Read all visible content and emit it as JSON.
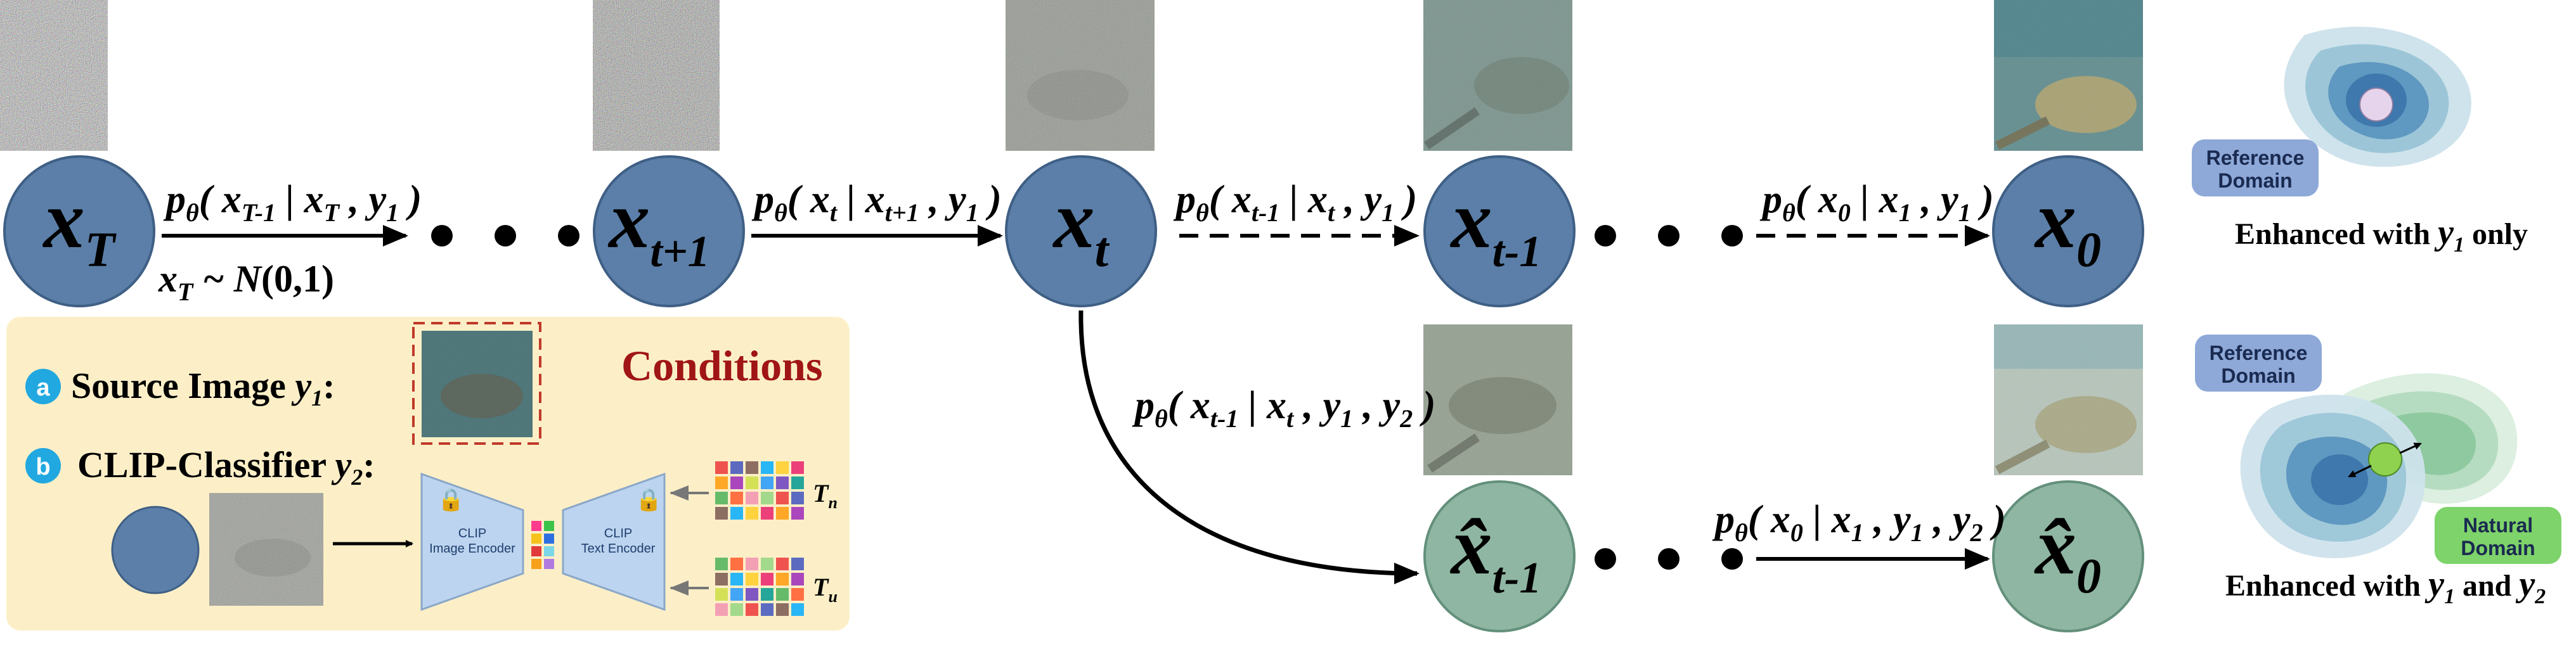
{
  "colors": {
    "node_blue": "#5b7fa8",
    "node_green": "#8fb6a2",
    "conditions_bg": "#fcefc7",
    "conditions_title": "#a01515",
    "badge_cyan": "#21a8e0",
    "reference_domain": "#8ea9d8",
    "natural_domain": "#7ed36a"
  },
  "nodes": {
    "xT": {
      "main": "x",
      "sub": "T"
    },
    "xt1": {
      "main": "x",
      "sub": "t+1"
    },
    "xt": {
      "main": "x",
      "sub": "t"
    },
    "xtm1": {
      "main": "x",
      "sub": "t-1"
    },
    "x0": {
      "main": "x",
      "sub": "0"
    },
    "hxtm1": {
      "main": "x̂",
      "sub": "t-1"
    },
    "hx0": {
      "main": "x̂",
      "sub": "0"
    }
  },
  "transitions": {
    "t1": {
      "p": "p",
      "theta": "θ",
      "body": "( x",
      "s1": "T-1",
      "mid": " | x",
      "s2": "T",
      "end": " , y",
      "s3": "1",
      "close": " )"
    },
    "t1_prior": {
      "x": "x",
      "sub": "T",
      "rest": " ~ N",
      "args": "(0,1)"
    },
    "t2": {
      "p": "p",
      "theta": "θ",
      "body": "( x",
      "s1": "t",
      "mid": " | x",
      "s2": "t+1",
      "end": " , y",
      "s3": "1",
      "close": " )"
    },
    "t3": {
      "p": "p",
      "theta": "θ",
      "body": "( x",
      "s1": "t-1",
      "mid": " | x",
      "s2": "t",
      "end": " , y",
      "s3": "1",
      "close": " )"
    },
    "t4": {
      "p": "p",
      "theta": "θ",
      "body": "( x",
      "s1": "0",
      "mid": " | x",
      "s2": "1",
      "end": " , y",
      "s3": "1",
      "close": " )"
    },
    "t5": {
      "p": "p",
      "theta": "θ",
      "body": "( x",
      "s1": "t-1",
      "mid": " | x",
      "s2": "t",
      "end": " , y",
      "s3": "1",
      "mid2": " , y",
      "s4": "2",
      "close": " )"
    },
    "t6": {
      "p": "p",
      "theta": "θ",
      "body": "( x",
      "s1": "0",
      "mid": " | x",
      "s2": "1",
      "end": " , y",
      "s3": "1",
      "mid2": " , y",
      "s4": "2",
      "close": " )"
    }
  },
  "conditions": {
    "title": "Conditions",
    "a": {
      "badge": "a",
      "label": "Source Image",
      "var": "y",
      "sub": "1",
      "colon": ":"
    },
    "b": {
      "badge": "b",
      "label": "CLIP-Classifier",
      "var": "y",
      "sub": "2",
      "colon": ":"
    },
    "image_encoder": {
      "line1": "CLIP",
      "line2": "Image Encoder"
    },
    "text_encoder": {
      "line1": "CLIP",
      "line2": "Text Encoder"
    },
    "tn": {
      "main": "T",
      "sub": "n"
    },
    "tu": {
      "main": "T",
      "sub": "u"
    }
  },
  "domains": {
    "top": {
      "reference": [
        "Reference",
        "Domain"
      ],
      "caption_pre": "Enhanced with ",
      "var": "y",
      "sub": "1",
      "caption_post": " only"
    },
    "bottom": {
      "reference": [
        "Reference",
        "Domain"
      ],
      "natural": [
        "Natural",
        "Domain"
      ],
      "caption_pre": "Enhanced with ",
      "var1": "y",
      "sub1": "1",
      "and": " and ",
      "var2": "y",
      "sub2": "2"
    }
  }
}
